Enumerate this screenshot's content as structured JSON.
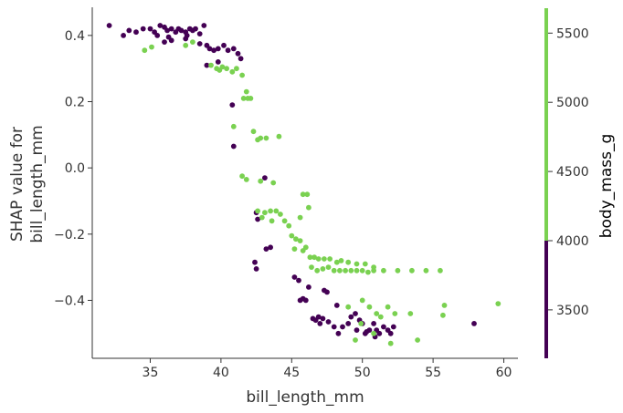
{
  "chart_data": {
    "type": "scatter",
    "xlabel": "bill_length_mm",
    "ylabel_lines": [
      "SHAP value for",
      "bill_length_mm"
    ],
    "xlim": [
      30.9,
      61.0
    ],
    "ylim": [
      -0.575,
      0.485
    ],
    "xticks": [
      35,
      40,
      45,
      50,
      55,
      60
    ],
    "yticks": [
      0.4,
      0.2,
      0.0,
      -0.2,
      -0.4
    ],
    "ytick_labels": [
      "0.4",
      "0.2",
      "0.0",
      "−0.2",
      "−0.4"
    ],
    "colorbar": {
      "label": "body_mass_g",
      "range": [
        3150,
        5680
      ],
      "ticks": [
        3500,
        4000,
        4500,
        5000,
        5500
      ],
      "threshold": 4000,
      "low_color": "#440154",
      "high_color": "#7ad151"
    },
    "series": [
      {
        "key": "low",
        "color": "#440154",
        "points": [
          [
            32.1,
            0.43
          ],
          [
            33.1,
            0.4
          ],
          [
            33.5,
            0.415
          ],
          [
            34.0,
            0.41
          ],
          [
            34.5,
            0.42
          ],
          [
            35.0,
            0.42
          ],
          [
            35.3,
            0.41
          ],
          [
            35.7,
            0.43
          ],
          [
            36.0,
            0.425
          ],
          [
            36.2,
            0.415
          ],
          [
            36.5,
            0.42
          ],
          [
            36.8,
            0.41
          ],
          [
            37.0,
            0.42
          ],
          [
            37.2,
            0.415
          ],
          [
            37.5,
            0.41
          ],
          [
            37.8,
            0.42
          ],
          [
            38.0,
            0.415
          ],
          [
            38.2,
            0.42
          ],
          [
            38.5,
            0.405
          ],
          [
            38.8,
            0.43
          ],
          [
            35.5,
            0.4
          ],
          [
            36.3,
            0.395
          ],
          [
            37.6,
            0.4
          ],
          [
            38.5,
            0.375
          ],
          [
            39.0,
            0.37
          ],
          [
            39.2,
            0.36
          ],
          [
            39.5,
            0.355
          ],
          [
            39.8,
            0.36
          ],
          [
            40.2,
            0.37
          ],
          [
            40.5,
            0.355
          ],
          [
            40.9,
            0.36
          ],
          [
            41.2,
            0.345
          ],
          [
            41.4,
            0.33
          ],
          [
            39.0,
            0.31
          ],
          [
            39.8,
            0.32
          ],
          [
            36.0,
            0.38
          ],
          [
            36.5,
            0.385
          ],
          [
            37.5,
            0.39
          ],
          [
            40.8,
            0.19
          ],
          [
            40.9,
            0.065
          ],
          [
            43.1,
            -0.03
          ],
          [
            42.5,
            -0.135
          ],
          [
            42.6,
            -0.155
          ],
          [
            43.2,
            -0.245
          ],
          [
            43.5,
            -0.24
          ],
          [
            42.4,
            -0.285
          ],
          [
            42.5,
            -0.305
          ],
          [
            45.2,
            -0.33
          ],
          [
            45.5,
            -0.34
          ],
          [
            45.6,
            -0.4
          ],
          [
            45.8,
            -0.395
          ],
          [
            46.0,
            -0.4
          ],
          [
            46.2,
            -0.36
          ],
          [
            46.5,
            -0.455
          ],
          [
            46.7,
            -0.46
          ],
          [
            46.9,
            -0.45
          ],
          [
            47.2,
            -0.455
          ],
          [
            47.3,
            -0.37
          ],
          [
            47.0,
            -0.47
          ],
          [
            47.5,
            -0.375
          ],
          [
            47.6,
            -0.465
          ],
          [
            48.0,
            -0.48
          ],
          [
            48.3,
            -0.5
          ],
          [
            48.6,
            -0.48
          ],
          [
            49.0,
            -0.47
          ],
          [
            49.2,
            -0.45
          ],
          [
            49.5,
            -0.44
          ],
          [
            49.8,
            -0.46
          ],
          [
            50.0,
            -0.47
          ],
          [
            50.2,
            -0.5
          ],
          [
            50.5,
            -0.49
          ],
          [
            50.8,
            -0.47
          ],
          [
            51.0,
            -0.49
          ],
          [
            51.2,
            -0.5
          ],
          [
            51.5,
            -0.48
          ],
          [
            51.8,
            -0.49
          ],
          [
            52.0,
            -0.5
          ],
          [
            52.2,
            -0.48
          ],
          [
            49.6,
            -0.49
          ],
          [
            50.3,
            -0.495
          ],
          [
            57.9,
            -0.47
          ],
          [
            48.2,
            -0.415
          ],
          [
            50.9,
            -0.51
          ]
        ]
      },
      {
        "key": "high",
        "color": "#7ad151",
        "points": [
          [
            34.6,
            0.355
          ],
          [
            35.1,
            0.365
          ],
          [
            37.5,
            0.37
          ],
          [
            38.0,
            0.38
          ],
          [
            39.3,
            0.31
          ],
          [
            39.7,
            0.3
          ],
          [
            39.9,
            0.295
          ],
          [
            40.1,
            0.305
          ],
          [
            40.4,
            0.3
          ],
          [
            40.8,
            0.29
          ],
          [
            41.1,
            0.3
          ],
          [
            41.5,
            0.28
          ],
          [
            41.8,
            0.23
          ],
          [
            41.9,
            0.21
          ],
          [
            42.1,
            0.21
          ],
          [
            41.6,
            0.21
          ],
          [
            40.9,
            0.125
          ],
          [
            42.6,
            0.085
          ],
          [
            42.8,
            0.09
          ],
          [
            43.2,
            0.09
          ],
          [
            44.1,
            0.095
          ],
          [
            42.3,
            0.11
          ],
          [
            41.5,
            -0.025
          ],
          [
            41.8,
            -0.035
          ],
          [
            42.8,
            -0.04
          ],
          [
            43.7,
            -0.045
          ],
          [
            42.6,
            -0.13
          ],
          [
            43.1,
            -0.135
          ],
          [
            43.5,
            -0.13
          ],
          [
            43.9,
            -0.13
          ],
          [
            44.2,
            -0.14
          ],
          [
            44.5,
            -0.16
          ],
          [
            43.6,
            -0.16
          ],
          [
            42.9,
            -0.15
          ],
          [
            44.8,
            -0.175
          ],
          [
            45.0,
            -0.205
          ],
          [
            45.3,
            -0.215
          ],
          [
            45.6,
            -0.22
          ],
          [
            45.2,
            -0.245
          ],
          [
            45.8,
            -0.25
          ],
          [
            46.0,
            -0.24
          ],
          [
            46.3,
            -0.27
          ],
          [
            46.6,
            -0.27
          ],
          [
            46.9,
            -0.275
          ],
          [
            47.3,
            -0.275
          ],
          [
            47.7,
            -0.275
          ],
          [
            48.2,
            -0.285
          ],
          [
            48.5,
            -0.28
          ],
          [
            49.0,
            -0.285
          ],
          [
            49.6,
            -0.29
          ],
          [
            50.2,
            -0.29
          ],
          [
            50.8,
            -0.3
          ],
          [
            46.4,
            -0.3
          ],
          [
            46.8,
            -0.31
          ],
          [
            47.2,
            -0.305
          ],
          [
            47.6,
            -0.3
          ],
          [
            48.0,
            -0.31
          ],
          [
            48.4,
            -0.31
          ],
          [
            48.8,
            -0.31
          ],
          [
            49.2,
            -0.31
          ],
          [
            49.6,
            -0.31
          ],
          [
            50.0,
            -0.31
          ],
          [
            50.4,
            -0.315
          ],
          [
            50.8,
            -0.31
          ],
          [
            51.5,
            -0.31
          ],
          [
            52.5,
            -0.31
          ],
          [
            53.5,
            -0.31
          ],
          [
            54.5,
            -0.31
          ],
          [
            55.5,
            -0.31
          ],
          [
            45.6,
            -0.15
          ],
          [
            45.8,
            -0.08
          ],
          [
            46.1,
            -0.08
          ],
          [
            46.2,
            -0.12
          ],
          [
            49.0,
            -0.42
          ],
          [
            50.0,
            -0.4
          ],
          [
            50.5,
            -0.42
          ],
          [
            51.8,
            -0.42
          ],
          [
            52.3,
            -0.44
          ],
          [
            51.0,
            -0.44
          ],
          [
            55.8,
            -0.415
          ],
          [
            55.7,
            -0.445
          ],
          [
            59.6,
            -0.41
          ],
          [
            50.8,
            -0.5
          ],
          [
            49.5,
            -0.52
          ],
          [
            51.3,
            -0.45
          ],
          [
            52.0,
            -0.53
          ],
          [
            53.9,
            -0.52
          ],
          [
            53.4,
            -0.44
          ],
          [
            49.9,
            -0.47
          ]
        ]
      }
    ]
  }
}
